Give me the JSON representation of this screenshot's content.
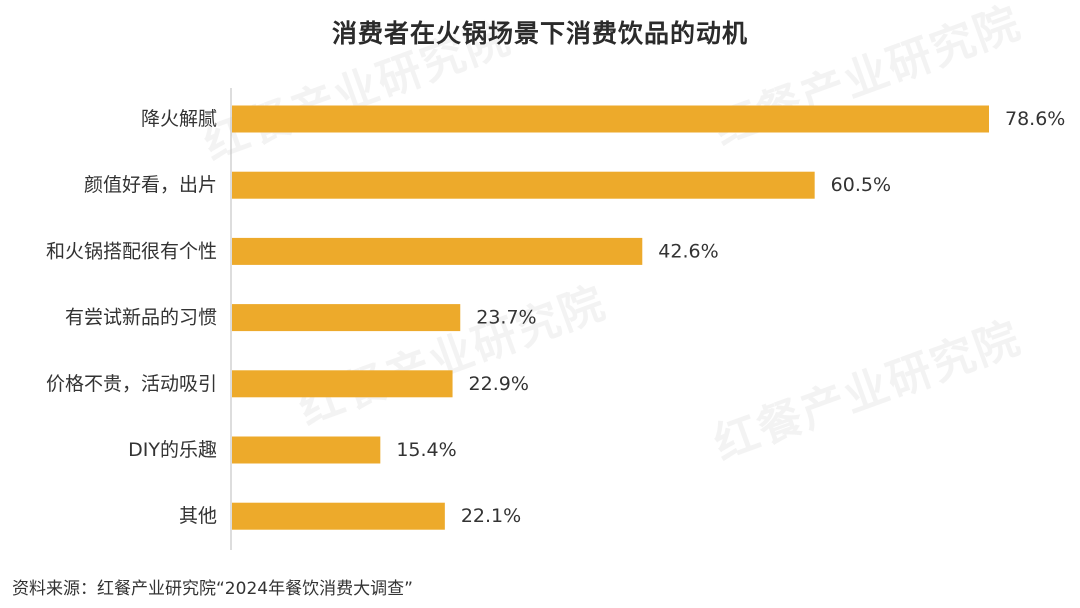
{
  "title": "消费者在火锅场景下消费饮品的动机",
  "source": "资料来源：红餐产业研究院“2024年餐饮消费大调查”",
  "watermark": "红餐产业研究院",
  "colors": {
    "bar": "#EDAA2B",
    "axis": "#bbbbbb",
    "label_text": "#333333"
  },
  "chart_data": {
    "type": "bar",
    "orientation": "horizontal",
    "categories": [
      "降火解腻",
      "颜值好看，出片",
      "和火锅搭配很有个性",
      "有尝试新品的习惯",
      "价格不贵，活动吸引",
      "DIY的乐趣",
      "其他"
    ],
    "values": [
      78.6,
      60.5,
      42.6,
      23.7,
      22.9,
      15.4,
      22.1
    ],
    "data_labels": [
      "78.6%",
      "60.5%",
      "42.6%",
      "23.7%",
      "22.9%",
      "15.4%",
      "22.1%"
    ],
    "value_unit": "%",
    "xlim": [
      0,
      80
    ],
    "grid": false,
    "legend": "none"
  }
}
